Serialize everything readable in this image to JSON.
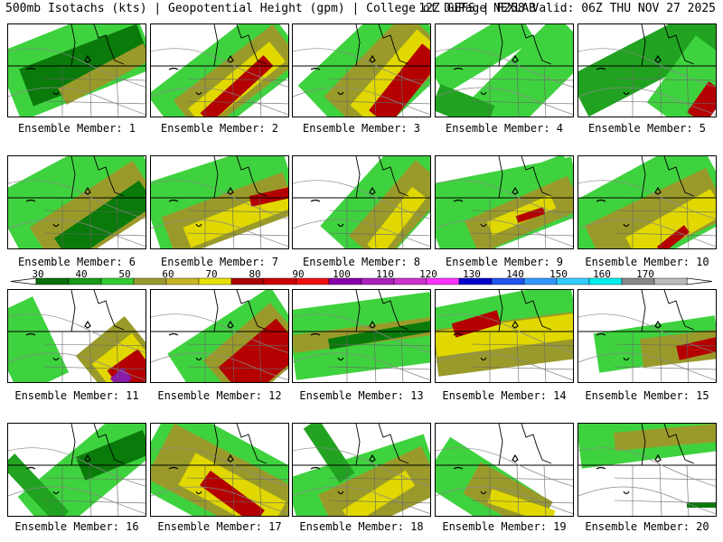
{
  "header": {
    "left": "500mb Isotachs (kts) | Geopotential Height (gpm) | College of DuPage NEXLAB",
    "right": "12Z GEFS | F258 Valid: 06Z THU NOV 27 2025"
  },
  "members": [
    {
      "label": "Ensemble Member: 1"
    },
    {
      "label": "Ensemble Member: 2"
    },
    {
      "label": "Ensemble Member: 3"
    },
    {
      "label": "Ensemble Member: 4"
    },
    {
      "label": "Ensemble Member: 5"
    },
    {
      "label": "Ensemble Member: 6"
    },
    {
      "label": "Ensemble Member: 7"
    },
    {
      "label": "Ensemble Member: 8"
    },
    {
      "label": "Ensemble Member: 9"
    },
    {
      "label": "Ensemble Member: 10"
    },
    {
      "label": "Ensemble Member: 11"
    },
    {
      "label": "Ensemble Member: 12"
    },
    {
      "label": "Ensemble Member: 13"
    },
    {
      "label": "Ensemble Member: 14"
    },
    {
      "label": "Ensemble Member: 15"
    },
    {
      "label": "Ensemble Member: 16"
    },
    {
      "label": "Ensemble Member: 17"
    },
    {
      "label": "Ensemble Member: 18"
    },
    {
      "label": "Ensemble Member: 19"
    },
    {
      "label": "Ensemble Member: 20"
    }
  ],
  "legend": {
    "ticks": [
      "30",
      "40",
      "50",
      "60",
      "70",
      "80",
      "90",
      "100",
      "110",
      "120",
      "130",
      "140",
      "150",
      "160",
      "170"
    ],
    "colors": [
      "#0a6e0a",
      "#1a9a1a",
      "#33cc33",
      "#9a9a33",
      "#c8b428",
      "#e8e000",
      "#aa0000",
      "#cc0000",
      "#ee1111",
      "#8800aa",
      "#aa22bb",
      "#cc33cc",
      "#ff33ff",
      "#0000cc",
      "#2255ee",
      "#3399ff",
      "#33ccff",
      "#00eeee",
      "#888888",
      "#bbbbbb"
    ]
  }
}
